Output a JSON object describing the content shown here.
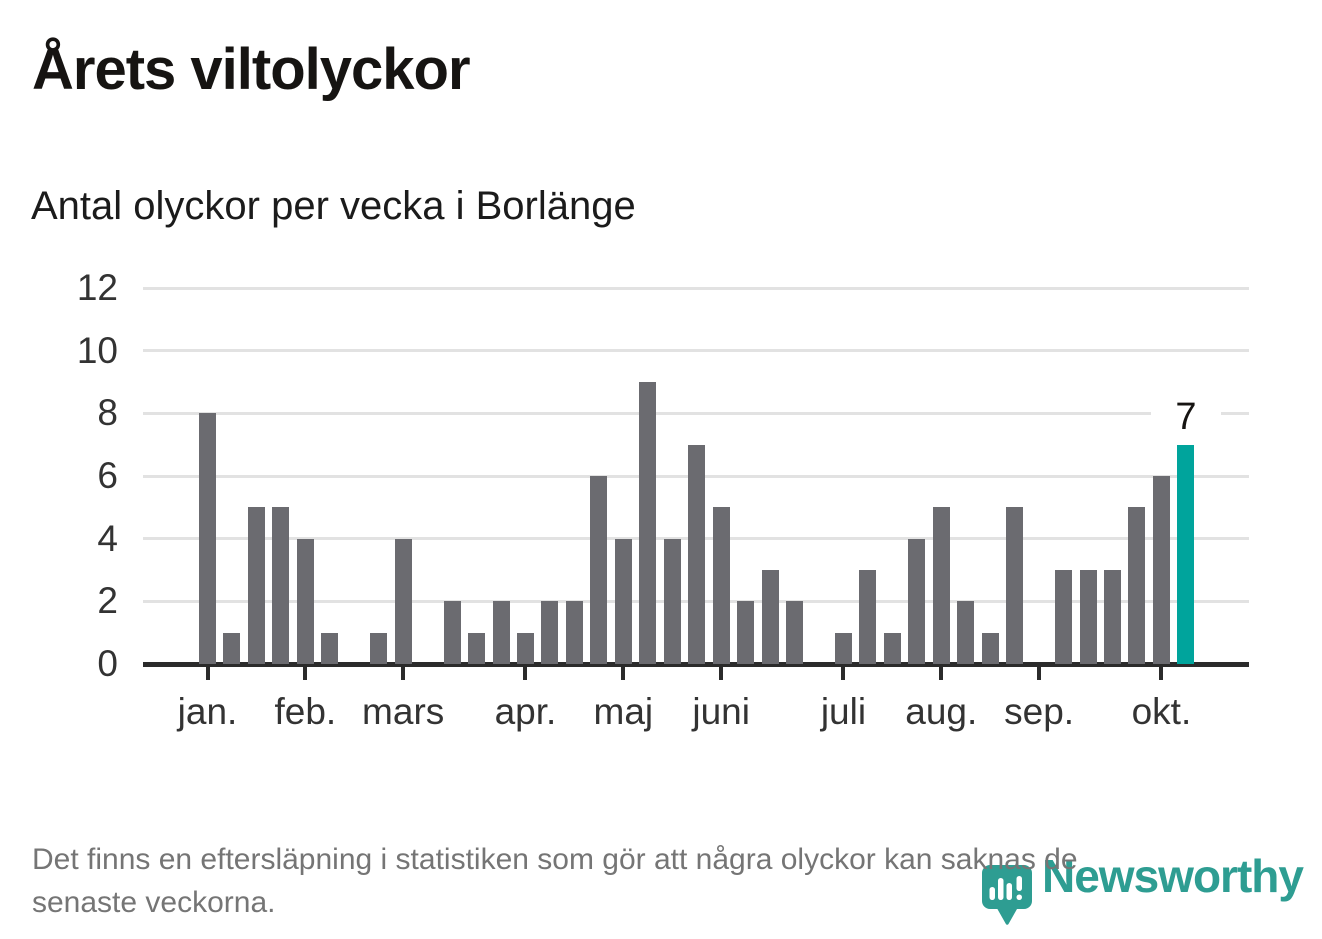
{
  "header": {
    "title": "Årets viltolyckor",
    "subtitle": "Antal olyckor per vecka i Borlänge"
  },
  "chart_data": {
    "type": "bar",
    "title": "Årets viltolyckor",
    "ylabel": "Antal olyckor per vecka",
    "x_type": "weeks-of-year",
    "values": [
      8,
      1,
      5,
      5,
      4,
      1,
      0,
      1,
      4,
      0,
      2,
      1,
      2,
      1,
      2,
      2,
      6,
      4,
      9,
      4,
      7,
      5,
      2,
      3,
      2,
      0,
      1,
      3,
      1,
      4,
      5,
      2,
      1,
      5,
      0,
      3,
      3,
      3,
      5,
      6,
      7
    ],
    "month_ticks": [
      {
        "label": "jan.",
        "index": 0
      },
      {
        "label": "feb.",
        "index": 4
      },
      {
        "label": "mars",
        "index": 8
      },
      {
        "label": "apr.",
        "index": 13
      },
      {
        "label": "maj",
        "index": 17
      },
      {
        "label": "juni",
        "index": 21
      },
      {
        "label": "juli",
        "index": 26
      },
      {
        "label": "aug.",
        "index": 30
      },
      {
        "label": "sep.",
        "index": 34
      },
      {
        "label": "okt.",
        "index": 39
      }
    ],
    "yticks": [
      0,
      2,
      4,
      6,
      8,
      10,
      12
    ],
    "ylim": [
      0,
      12
    ],
    "grid": true,
    "legend": "none",
    "highlight_index": 40,
    "annotation": {
      "index": 40,
      "label": "7"
    },
    "bar_color": "#6b6b70",
    "highlight_color": "#00a49c"
  },
  "footnote": {
    "text": "Det finns en eftersläpning i statistiken som gör att några olyckor kan saknas de\nsenaste veckorna."
  },
  "logo": {
    "wordmark": "Newsworthy",
    "icon": "newsworthy-speech-bubble-bar-chart-icon",
    "color": "#2e9d92"
  }
}
